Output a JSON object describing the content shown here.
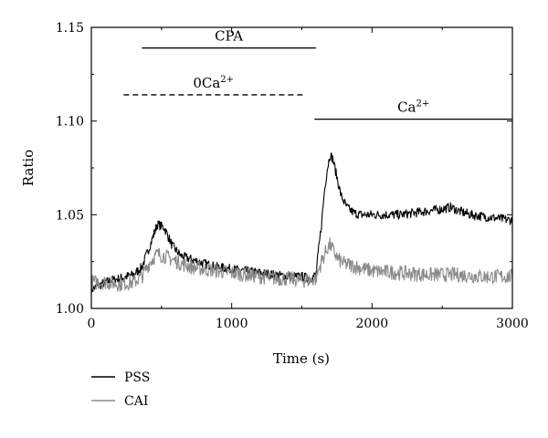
{
  "chart_data": {
    "type": "line",
    "xlabel": "Time (s)",
    "ylabel": "Ratio",
    "xlim": [
      0,
      3000
    ],
    "ylim": [
      1.0,
      1.15
    ],
    "xticks": [
      0,
      1000,
      2000,
      3000
    ],
    "yticks": [
      1.0,
      1.05,
      1.1,
      1.15
    ],
    "xtick_labels": [
      "0",
      "1000",
      "2000",
      "3000"
    ],
    "ytick_labels": [
      "1.00",
      "1.05",
      "1.10",
      "1.15"
    ],
    "grid": false,
    "legend_position": "bottom-left",
    "annotations": [
      {
        "id": "cpa",
        "label_parts": [
          {
            "text": "CPA",
            "sup": ""
          }
        ],
        "x_start": 360,
        "x_end": 1600,
        "y": 1.139,
        "style": "solid"
      },
      {
        "id": "zero-ca",
        "label_parts": [
          {
            "text": "0Ca",
            "sup": "2+"
          }
        ],
        "x_start": 230,
        "x_end": 1510,
        "y": 1.114,
        "style": "dashed"
      },
      {
        "id": "ca",
        "label_parts": [
          {
            "text": "Ca",
            "sup": "2+"
          }
        ],
        "x_start": 1590,
        "x_end": 3000,
        "y": 1.101,
        "style": "solid"
      }
    ],
    "series": [
      {
        "name": "PSS",
        "color": "#000000",
        "noise": 0.0025,
        "x": [
          0,
          100,
          200,
          300,
          360,
          420,
          470,
          520,
          580,
          640,
          720,
          800,
          900,
          1000,
          1100,
          1200,
          1300,
          1400,
          1500,
          1560,
          1600,
          1640,
          1660,
          1680,
          1700,
          1720,
          1750,
          1780,
          1820,
          1870,
          1920,
          2000,
          2100,
          2200,
          2300,
          2400,
          2500,
          2560,
          2620,
          2700,
          2800,
          2900,
          3000
        ],
        "y": [
          1.01,
          1.014,
          1.016,
          1.018,
          1.022,
          1.034,
          1.045,
          1.043,
          1.033,
          1.028,
          1.026,
          1.024,
          1.022,
          1.021,
          1.02,
          1.019,
          1.018,
          1.017,
          1.017,
          1.016,
          1.018,
          1.045,
          1.062,
          1.074,
          1.082,
          1.08,
          1.07,
          1.06,
          1.054,
          1.051,
          1.05,
          1.05,
          1.05,
          1.05,
          1.051,
          1.052,
          1.053,
          1.054,
          1.052,
          1.05,
          1.049,
          1.048,
          1.047
        ]
      },
      {
        "name": "CAI",
        "color": "#8a8a8a",
        "noise": 0.004,
        "x": [
          0,
          100,
          200,
          300,
          360,
          420,
          470,
          520,
          580,
          640,
          720,
          800,
          900,
          1000,
          1100,
          1200,
          1300,
          1400,
          1500,
          1560,
          1600,
          1640,
          1680,
          1700,
          1730,
          1760,
          1800,
          1900,
          2000,
          2200,
          2400,
          2600,
          2800,
          3000
        ],
        "y": [
          1.014,
          1.014,
          1.013,
          1.014,
          1.017,
          1.025,
          1.029,
          1.028,
          1.026,
          1.024,
          1.022,
          1.021,
          1.02,
          1.019,
          1.018,
          1.017,
          1.016,
          1.016,
          1.015,
          1.015,
          1.016,
          1.025,
          1.032,
          1.034,
          1.03,
          1.026,
          1.024,
          1.022,
          1.02,
          1.019,
          1.018,
          1.018,
          1.017,
          1.017
        ]
      }
    ]
  }
}
